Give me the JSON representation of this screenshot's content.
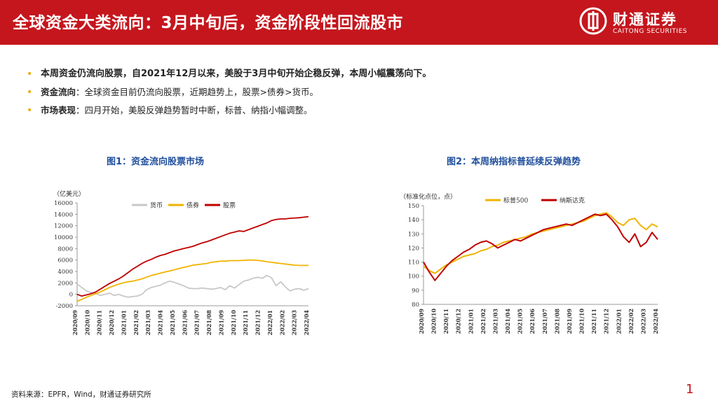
{
  "header": {
    "title": "全球资金大类流向：3月中旬后，资金阶段性回流股市"
  },
  "brand": {
    "name": "财通证券",
    "en": "CAITONG SECURITIES",
    "color": "#c5161d"
  },
  "bullets": [
    {
      "bold": "本周资金仍流向股票，自2021年12月以来，美股于3月中旬开始企稳反弹，本周小幅震荡向下。",
      "text": ""
    },
    {
      "bold": "资金流向",
      "text": "：全球资金目前仍流向股票，近期趋势上，股票>债券>货币。"
    },
    {
      "bold": "市场表现",
      "text": "：四月开始，美股反弹趋势暂时中断，标普、纳指小幅调整。"
    }
  ],
  "chart1_title": "图1：资金流向股票市场",
  "chart2_title": "图2：本周纳指标普延续反弹趋势",
  "chart_data": [
    {
      "type": "line",
      "title": "图1：资金流向股票市场",
      "unit_label": "（亿美元）",
      "ylim": [
        -2000,
        16000
      ],
      "yticks": [
        "-2000",
        "0",
        "2000",
        "4000",
        "6000",
        "8000",
        "10000",
        "12000",
        "14000",
        "16000"
      ],
      "xticks": [
        "2020/09",
        "2020/10",
        "2020/11",
        "2020/12",
        "2021/01",
        "2021/02",
        "2021/03",
        "2021/04",
        "2021/05",
        "2021/06",
        "2021/07",
        "2021/08",
        "2021/09",
        "2021/10",
        "2021/11",
        "2021/12",
        "2022/01",
        "2022/02",
        "2022/03",
        "2022/04"
      ],
      "series": [
        {
          "name": "货币",
          "color": "#c8c8c8",
          "values": [
            1800,
            1200,
            600,
            300,
            200,
            -200,
            0,
            200,
            -200,
            0,
            -300,
            -500,
            -400,
            -300,
            0,
            800,
            1200,
            1400,
            1600,
            2000,
            2300,
            2100,
            1800,
            1500,
            1100,
            1000,
            1000,
            1100,
            1000,
            900,
            1000,
            1200,
            800,
            1500,
            1100,
            1700,
            2300,
            2500,
            2800,
            3000,
            2800,
            3300,
            2900,
            1500,
            2200,
            1300,
            600,
            900,
            1000,
            700,
            1000
          ]
        },
        {
          "name": "债券",
          "color": "#f0b400",
          "values": [
            -1200,
            -900,
            -500,
            -200,
            100,
            400,
            800,
            1200,
            1500,
            1800,
            2000,
            2200,
            2300,
            2500,
            2700,
            3000,
            3300,
            3500,
            3700,
            3900,
            4100,
            4300,
            4500,
            4700,
            4900,
            5100,
            5200,
            5300,
            5400,
            5600,
            5700,
            5800,
            5800,
            5900,
            5900,
            5900,
            5950,
            6000,
            6000,
            5950,
            5850,
            5700,
            5600,
            5500,
            5400,
            5300,
            5200,
            5100,
            5050,
            5050,
            5050
          ]
        },
        {
          "name": "股票",
          "color": "#c00000",
          "values": [
            0,
            -300,
            -100,
            100,
            400,
            900,
            1400,
            1900,
            2300,
            2700,
            3200,
            3800,
            4400,
            4900,
            5400,
            5800,
            6100,
            6500,
            6800,
            7000,
            7300,
            7600,
            7800,
            8000,
            8200,
            8400,
            8700,
            9000,
            9200,
            9500,
            9800,
            10100,
            10400,
            10700,
            10900,
            11100,
            11000,
            11300,
            11600,
            11900,
            12200,
            12500,
            12900,
            13100,
            13200,
            13200,
            13300,
            13350,
            13400,
            13500,
            13600
          ]
        }
      ]
    },
    {
      "type": "line",
      "title": "图2：本周纳指标普延续反弹趋势",
      "unit_label": "（标准化点位，点）",
      "ylim": [
        80,
        150
      ],
      "yticks": [
        "80",
        "90",
        "100",
        "110",
        "120",
        "130",
        "140",
        "150"
      ],
      "xticks": [
        "2020/09",
        "2020/10",
        "2020/11",
        "2020/12",
        "2021/01",
        "2021/02",
        "2021/03",
        "2021/04",
        "2021/05",
        "2021/06",
        "2021/07",
        "2021/08",
        "2021/09",
        "2021/10",
        "2021/11",
        "2021/12",
        "2022/01",
        "2022/02",
        "2022/03",
        "2022/04"
      ],
      "series": [
        {
          "name": "标普500",
          "color": "#f0b400",
          "values": [
            107,
            104,
            102,
            105,
            108,
            110,
            112,
            114,
            115,
            116,
            118,
            119,
            121,
            122,
            124,
            125,
            126,
            127,
            128,
            130,
            131,
            132,
            133,
            134,
            135,
            136,
            137,
            138,
            139,
            141,
            143,
            144,
            145,
            142,
            138,
            136,
            140,
            141,
            136,
            133,
            137,
            135
          ]
        },
        {
          "name": "纳斯达克",
          "color": "#c00000",
          "values": [
            110,
            103,
            97,
            102,
            107,
            111,
            114,
            117,
            119,
            122,
            124,
            125,
            123,
            120,
            122,
            124,
            126,
            125,
            127,
            129,
            131,
            133,
            134,
            135,
            136,
            137,
            136,
            138,
            140,
            142,
            144,
            143,
            144,
            140,
            135,
            128,
            124,
            130,
            121,
            124,
            131,
            126
          ]
        }
      ]
    }
  ],
  "source": "资料来源：EPFR，Wind，财通证券研究所",
  "page_number": "1"
}
